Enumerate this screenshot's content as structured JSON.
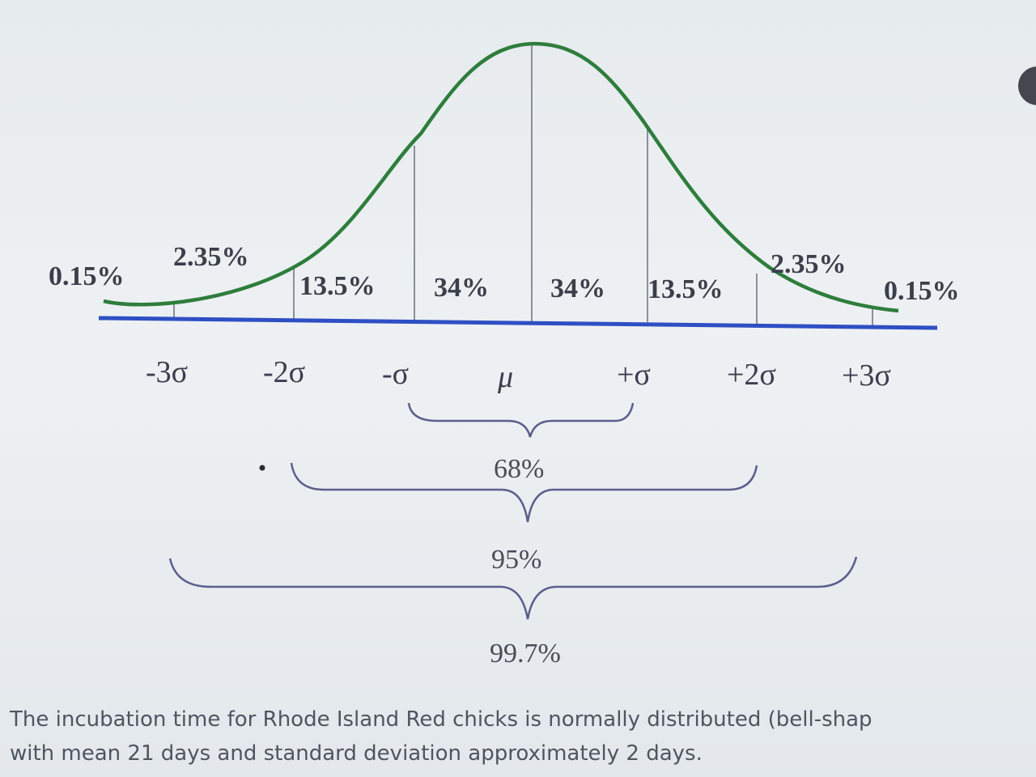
{
  "diagram": {
    "segment_labels": [
      "0.15%",
      "2.35%",
      "13.5%",
      "34%",
      "34%",
      "13.5%",
      "2.35%",
      "0.15%"
    ],
    "axis_labels": [
      "-3σ",
      "-2σ",
      "-σ",
      "μ",
      "+σ",
      "+2σ",
      "+3σ"
    ],
    "braces": [
      {
        "label": "68%"
      },
      {
        "label": "95%"
      },
      {
        "label": "99.7%"
      }
    ],
    "colors": {
      "curve": "#2e7d3c",
      "axis": "#2e4fc4",
      "divider": "#8a8f9a",
      "brace": "#5b5f8c"
    }
  },
  "caption": {
    "line1": "The incubation time for Rhode Island Red chicks is normally distributed (bell-shap",
    "line2": "with mean 21 days and standard deviation approximately 2 days."
  }
}
